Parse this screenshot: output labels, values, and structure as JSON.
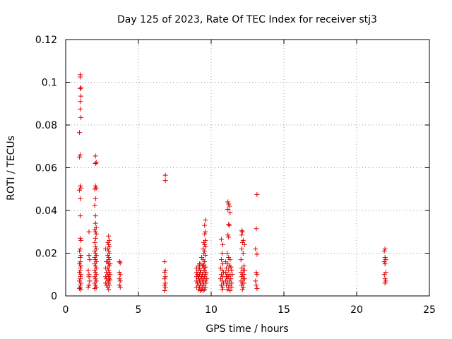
{
  "chart_data": {
    "type": "scatter",
    "title": "Day 125 of 2023, Rate Of TEC Index for receiver stj3",
    "xlabel": "GPS time / hours",
    "ylabel": "ROTI / TECUs",
    "xlim": [
      0,
      25
    ],
    "ylim": [
      0,
      0.12
    ],
    "xticks": [
      "0",
      "5",
      "10",
      "15",
      "20",
      "25"
    ],
    "yticks": [
      "0",
      "0.02",
      "0.04",
      "0.06",
      "0.08",
      "0.1",
      "0.12"
    ],
    "grid": true,
    "marker": "plus",
    "color": "#e00000",
    "series": [
      {
        "name": "ROTI",
        "points": [
          [
            1.0,
            0.1035
          ],
          [
            1.0,
            0.1025
          ],
          [
            1.05,
            0.0975
          ],
          [
            1.0,
            0.097
          ],
          [
            1.05,
            0.0935
          ],
          [
            1.0,
            0.091
          ],
          [
            1.0,
            0.0875
          ],
          [
            1.05,
            0.0835
          ],
          [
            0.95,
            0.0765
          ],
          [
            1.0,
            0.066
          ],
          [
            0.95,
            0.065
          ],
          [
            1.0,
            0.0515
          ],
          [
            1.05,
            0.0505
          ],
          [
            0.95,
            0.0495
          ],
          [
            1.0,
            0.0455
          ],
          [
            1.0,
            0.0375
          ],
          [
            1.0,
            0.027
          ],
          [
            1.05,
            0.026
          ],
          [
            1.0,
            0.022
          ],
          [
            0.95,
            0.021
          ],
          [
            1.05,
            0.019
          ],
          [
            1.0,
            0.018
          ],
          [
            1.0,
            0.016
          ],
          [
            0.95,
            0.015
          ],
          [
            1.05,
            0.014
          ],
          [
            1.0,
            0.013
          ],
          [
            1.0,
            0.012
          ],
          [
            0.95,
            0.011
          ],
          [
            1.05,
            0.01
          ],
          [
            1.0,
            0.009
          ],
          [
            1.0,
            0.008
          ],
          [
            0.95,
            0.007
          ],
          [
            1.05,
            0.006
          ],
          [
            1.0,
            0.005
          ],
          [
            1.0,
            0.004
          ],
          [
            0.95,
            0.0035
          ],
          [
            1.05,
            0.003
          ],
          [
            1.6,
            0.03
          ],
          [
            1.6,
            0.019
          ],
          [
            1.65,
            0.017
          ],
          [
            1.55,
            0.012
          ],
          [
            1.6,
            0.01
          ],
          [
            1.6,
            0.009
          ],
          [
            1.65,
            0.007
          ],
          [
            1.6,
            0.005
          ],
          [
            1.55,
            0.004
          ],
          [
            2.05,
            0.0655
          ],
          [
            2.1,
            0.0625
          ],
          [
            2.05,
            0.062
          ],
          [
            2.05,
            0.0515
          ],
          [
            2.1,
            0.0505
          ],
          [
            2.0,
            0.05
          ],
          [
            2.05,
            0.0455
          ],
          [
            2.0,
            0.0425
          ],
          [
            2.05,
            0.0375
          ],
          [
            2.05,
            0.034
          ],
          [
            2.1,
            0.032
          ],
          [
            2.0,
            0.031
          ],
          [
            2.05,
            0.03
          ],
          [
            2.1,
            0.029
          ],
          [
            2.05,
            0.027
          ],
          [
            2.0,
            0.025
          ],
          [
            2.05,
            0.023
          ],
          [
            2.1,
            0.022
          ],
          [
            2.0,
            0.021
          ],
          [
            2.05,
            0.02
          ],
          [
            2.1,
            0.019
          ],
          [
            2.0,
            0.018
          ],
          [
            2.05,
            0.017
          ],
          [
            2.1,
            0.016
          ],
          [
            2.0,
            0.015
          ],
          [
            2.05,
            0.014
          ],
          [
            2.1,
            0.013
          ],
          [
            2.0,
            0.012
          ],
          [
            2.05,
            0.011
          ],
          [
            2.1,
            0.01
          ],
          [
            2.0,
            0.009
          ],
          [
            2.05,
            0.008
          ],
          [
            2.1,
            0.007
          ],
          [
            2.0,
            0.006
          ],
          [
            2.05,
            0.005
          ],
          [
            2.1,
            0.004
          ],
          [
            2.0,
            0.0035
          ],
          [
            2.75,
            0.022
          ],
          [
            2.8,
            0.016
          ],
          [
            2.75,
            0.013
          ],
          [
            2.8,
            0.011
          ],
          [
            2.75,
            0.009
          ],
          [
            2.8,
            0.008
          ],
          [
            2.75,
            0.006
          ],
          [
            2.8,
            0.005
          ],
          [
            2.95,
            0.028
          ],
          [
            3.0,
            0.026
          ],
          [
            2.9,
            0.025
          ],
          [
            2.95,
            0.024
          ],
          [
            3.0,
            0.023
          ],
          [
            2.9,
            0.022
          ],
          [
            2.95,
            0.021
          ],
          [
            3.0,
            0.02
          ],
          [
            2.9,
            0.019
          ],
          [
            2.95,
            0.018
          ],
          [
            3.0,
            0.017
          ],
          [
            2.9,
            0.016
          ],
          [
            2.95,
            0.015
          ],
          [
            3.0,
            0.014
          ],
          [
            2.9,
            0.013
          ],
          [
            2.95,
            0.012
          ],
          [
            3.0,
            0.011
          ],
          [
            2.9,
            0.01
          ],
          [
            2.95,
            0.009
          ],
          [
            3.0,
            0.008
          ],
          [
            2.9,
            0.007
          ],
          [
            2.95,
            0.006
          ],
          [
            3.0,
            0.005
          ],
          [
            2.9,
            0.004
          ],
          [
            2.95,
            0.003
          ],
          [
            3.05,
            0.015
          ],
          [
            3.05,
            0.01
          ],
          [
            3.05,
            0.0075
          ],
          [
            3.7,
            0.016
          ],
          [
            3.75,
            0.0155
          ],
          [
            3.7,
            0.011
          ],
          [
            3.75,
            0.01
          ],
          [
            3.7,
            0.008
          ],
          [
            3.75,
            0.007
          ],
          [
            3.7,
            0.005
          ],
          [
            3.75,
            0.004
          ],
          [
            6.85,
            0.0565
          ],
          [
            6.85,
            0.054
          ],
          [
            6.8,
            0.016
          ],
          [
            6.85,
            0.012
          ],
          [
            6.8,
            0.011
          ],
          [
            6.85,
            0.009
          ],
          [
            6.8,
            0.008
          ],
          [
            6.85,
            0.006
          ],
          [
            6.8,
            0.005
          ],
          [
            6.85,
            0.004
          ],
          [
            6.8,
            0.0025
          ],
          [
            9.6,
            0.0355
          ],
          [
            9.55,
            0.033
          ],
          [
            9.6,
            0.03
          ],
          [
            9.55,
            0.029
          ],
          [
            9.6,
            0.026
          ],
          [
            9.5,
            0.025
          ],
          [
            9.55,
            0.024
          ],
          [
            9.6,
            0.023
          ],
          [
            9.45,
            0.022
          ],
          [
            9.55,
            0.021
          ],
          [
            9.5,
            0.02
          ],
          [
            9.6,
            0.019
          ],
          [
            9.35,
            0.018
          ],
          [
            9.45,
            0.017
          ],
          [
            9.55,
            0.016
          ],
          [
            9.2,
            0.015
          ],
          [
            9.3,
            0.015
          ],
          [
            9.5,
            0.0145
          ],
          [
            9.1,
            0.014
          ],
          [
            9.4,
            0.014
          ],
          [
            9.6,
            0.0135
          ],
          [
            9.0,
            0.013
          ],
          [
            9.2,
            0.013
          ],
          [
            9.5,
            0.013
          ],
          [
            9.1,
            0.012
          ],
          [
            9.3,
            0.012
          ],
          [
            9.55,
            0.012
          ],
          [
            9.0,
            0.011
          ],
          [
            9.25,
            0.011
          ],
          [
            9.45,
            0.011
          ],
          [
            9.65,
            0.011
          ],
          [
            9.05,
            0.01
          ],
          [
            9.2,
            0.01
          ],
          [
            9.4,
            0.01
          ],
          [
            9.6,
            0.01
          ],
          [
            9.0,
            0.009
          ],
          [
            9.15,
            0.009
          ],
          [
            9.35,
            0.009
          ],
          [
            9.55,
            0.009
          ],
          [
            9.1,
            0.008
          ],
          [
            9.3,
            0.008
          ],
          [
            9.5,
            0.008
          ],
          [
            9.7,
            0.008
          ],
          [
            9.0,
            0.007
          ],
          [
            9.2,
            0.007
          ],
          [
            9.4,
            0.007
          ],
          [
            9.6,
            0.007
          ],
          [
            9.05,
            0.006
          ],
          [
            9.25,
            0.006
          ],
          [
            9.45,
            0.006
          ],
          [
            9.65,
            0.006
          ],
          [
            9.1,
            0.005
          ],
          [
            9.3,
            0.005
          ],
          [
            9.5,
            0.005
          ],
          [
            9.0,
            0.004
          ],
          [
            9.2,
            0.004
          ],
          [
            9.4,
            0.004
          ],
          [
            9.6,
            0.004
          ],
          [
            9.15,
            0.003
          ],
          [
            9.35,
            0.003
          ],
          [
            9.55,
            0.003
          ],
          [
            9.25,
            0.0025
          ],
          [
            9.45,
            0.0025
          ],
          [
            10.7,
            0.0265
          ],
          [
            10.8,
            0.024
          ],
          [
            10.75,
            0.02
          ],
          [
            10.7,
            0.017
          ],
          [
            10.8,
            0.015
          ],
          [
            10.65,
            0.013
          ],
          [
            10.75,
            0.012
          ],
          [
            10.85,
            0.011
          ],
          [
            10.7,
            0.01
          ],
          [
            10.8,
            0.009
          ],
          [
            10.65,
            0.008
          ],
          [
            10.75,
            0.007
          ],
          [
            10.85,
            0.006
          ],
          [
            10.7,
            0.005
          ],
          [
            10.8,
            0.004
          ],
          [
            10.75,
            0.003
          ],
          [
            11.15,
            0.044
          ],
          [
            11.2,
            0.043
          ],
          [
            11.25,
            0.042
          ],
          [
            11.15,
            0.0405
          ],
          [
            11.3,
            0.039
          ],
          [
            11.2,
            0.0335
          ],
          [
            11.25,
            0.033
          ],
          [
            11.15,
            0.0285
          ],
          [
            11.2,
            0.0275
          ],
          [
            11.1,
            0.02
          ],
          [
            11.2,
            0.018
          ],
          [
            11.3,
            0.017
          ],
          [
            11.0,
            0.016
          ],
          [
            11.15,
            0.015
          ],
          [
            11.25,
            0.014
          ],
          [
            11.35,
            0.0135
          ],
          [
            11.05,
            0.013
          ],
          [
            11.2,
            0.012
          ],
          [
            11.4,
            0.012
          ],
          [
            11.0,
            0.011
          ],
          [
            11.1,
            0.01
          ],
          [
            11.3,
            0.01
          ],
          [
            11.45,
            0.01
          ],
          [
            11.05,
            0.009
          ],
          [
            11.2,
            0.009
          ],
          [
            11.35,
            0.008
          ],
          [
            11.1,
            0.008
          ],
          [
            11.0,
            0.007
          ],
          [
            11.25,
            0.007
          ],
          [
            11.4,
            0.006
          ],
          [
            11.15,
            0.006
          ],
          [
            11.05,
            0.005
          ],
          [
            11.3,
            0.005
          ],
          [
            11.2,
            0.004
          ],
          [
            11.4,
            0.004
          ],
          [
            11.1,
            0.003
          ],
          [
            11.3,
            0.0025
          ],
          [
            12.1,
            0.0305
          ],
          [
            12.15,
            0.03
          ],
          [
            12.1,
            0.0285
          ],
          [
            12.2,
            0.026
          ],
          [
            12.15,
            0.025
          ],
          [
            12.3,
            0.024
          ],
          [
            12.1,
            0.022
          ],
          [
            12.2,
            0.02
          ],
          [
            12.05,
            0.017
          ],
          [
            12.25,
            0.014
          ],
          [
            12.1,
            0.013
          ],
          [
            12.2,
            0.012
          ],
          [
            12.3,
            0.012
          ],
          [
            12.05,
            0.011
          ],
          [
            12.15,
            0.01
          ],
          [
            12.25,
            0.01
          ],
          [
            12.1,
            0.009
          ],
          [
            12.2,
            0.008
          ],
          [
            12.3,
            0.008
          ],
          [
            12.05,
            0.007
          ],
          [
            12.15,
            0.006
          ],
          [
            12.25,
            0.006
          ],
          [
            12.1,
            0.005
          ],
          [
            12.2,
            0.004
          ],
          [
            12.15,
            0.003
          ],
          [
            13.15,
            0.0475
          ],
          [
            13.1,
            0.0315
          ],
          [
            13.05,
            0.022
          ],
          [
            13.15,
            0.0195
          ],
          [
            13.1,
            0.011
          ],
          [
            13.15,
            0.01
          ],
          [
            13.05,
            0.007
          ],
          [
            13.1,
            0.005
          ],
          [
            13.15,
            0.0035
          ],
          [
            21.95,
            0.022
          ],
          [
            21.9,
            0.021
          ],
          [
            21.95,
            0.018
          ],
          [
            22.0,
            0.017
          ],
          [
            21.9,
            0.016
          ],
          [
            21.95,
            0.015
          ],
          [
            22.0,
            0.011
          ],
          [
            21.9,
            0.01
          ],
          [
            21.95,
            0.008
          ],
          [
            22.0,
            0.007
          ],
          [
            21.95,
            0.006
          ]
        ]
      }
    ]
  }
}
